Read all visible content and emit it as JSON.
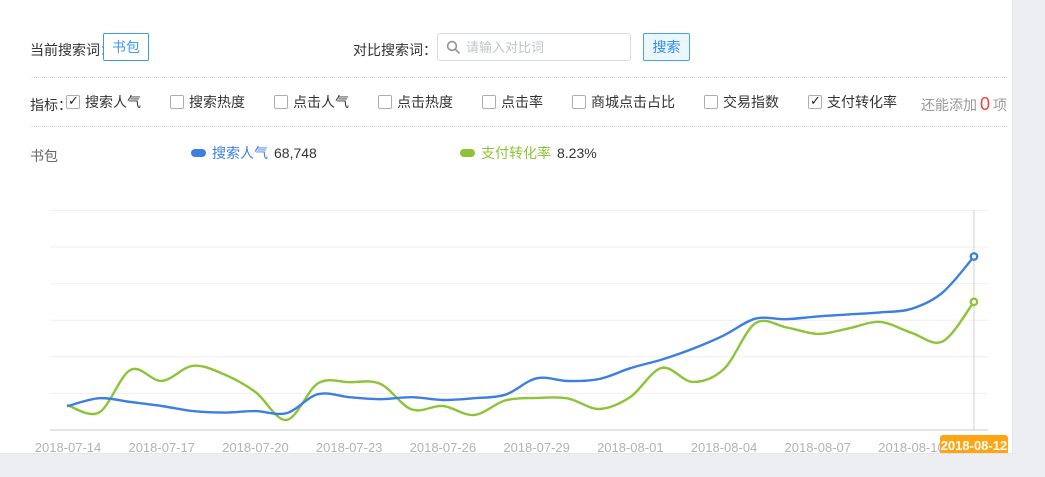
{
  "search_bar": {
    "current_label": "当前搜索词：",
    "current_term": "书包",
    "compare_label": "对比搜索词：",
    "compare_placeholder": "请输入对比词",
    "search_button": "搜索"
  },
  "metrics": {
    "label": "指标：",
    "items": [
      {
        "label": "搜索人气",
        "checked": true
      },
      {
        "label": "搜索热度",
        "checked": false
      },
      {
        "label": "点击人气",
        "checked": false
      },
      {
        "label": "点击热度",
        "checked": false
      },
      {
        "label": "点击率",
        "checked": false
      },
      {
        "label": "商城点击占比",
        "checked": false
      },
      {
        "label": "交易指数",
        "checked": false
      },
      {
        "label": "支付转化率",
        "checked": true
      }
    ],
    "remain_prefix": "还能添加",
    "remain_count": "0",
    "remain_suffix": "项"
  },
  "legend": {
    "term": "书包",
    "items": [
      {
        "label": "搜索人气",
        "value": "68,748",
        "color": "#3c7fe0"
      },
      {
        "label": "支付转化率",
        "value": "8.23%",
        "color": "#8dc437"
      }
    ]
  },
  "colors": {
    "accent_blue": "#3d9ae8",
    "line_blue": "#3c7fe0",
    "line_green": "#8dc437",
    "highlight_orange": "#ffa412",
    "alert_red": "#f2413d",
    "grid": "#efefef",
    "axis": "#c9c9c9",
    "tick_text": "#b0b2b5"
  },
  "chart_data": {
    "type": "line",
    "title": "",
    "grid": true,
    "legend_position": "top",
    "y_axis_labels_visible": false,
    "x_dates": [
      "2018-07-14",
      "2018-07-15",
      "2018-07-16",
      "2018-07-17",
      "2018-07-18",
      "2018-07-19",
      "2018-07-20",
      "2018-07-21",
      "2018-07-22",
      "2018-07-23",
      "2018-07-24",
      "2018-07-25",
      "2018-07-26",
      "2018-07-27",
      "2018-07-28",
      "2018-07-29",
      "2018-07-30",
      "2018-07-31",
      "2018-08-01",
      "2018-08-02",
      "2018-08-03",
      "2018-08-04",
      "2018-08-05",
      "2018-08-06",
      "2018-08-07",
      "2018-08-08",
      "2018-08-09",
      "2018-08-10",
      "2018-08-11",
      "2018-08-12"
    ],
    "x_tick_labels": [
      "2018-07-14",
      "2018-07-17",
      "2018-07-20",
      "2018-07-23",
      "2018-07-26",
      "2018-07-29",
      "2018-08-01",
      "2018-08-04",
      "2018-08-07",
      "2018-08-10"
    ],
    "highlight_label": "2018-08-12",
    "series": [
      {
        "name": "搜索人气",
        "color": "#3c7fe0",
        "current_value": "68,748",
        "ylim": [
          0,
          87000
        ],
        "values": [
          9500,
          12600,
          11100,
          9500,
          7500,
          6900,
          7500,
          6700,
          14200,
          13000,
          12200,
          13000,
          11900,
          12600,
          14000,
          20500,
          19400,
          20200,
          24500,
          27900,
          32200,
          37500,
          44100,
          43900,
          45000,
          45800,
          46600,
          48000,
          54500,
          68748
        ]
      },
      {
        "name": "支付转化率",
        "color": "#8dc437",
        "current_value": "8.23%",
        "ylim": [
          0,
          14.1
        ],
        "values": [
          1.58,
          1.13,
          3.86,
          3.15,
          4.12,
          3.57,
          2.44,
          0.64,
          2.99,
          3.07,
          2.96,
          1.32,
          1.54,
          0.96,
          1.9,
          2.06,
          2.03,
          1.35,
          2.12,
          3.99,
          3.09,
          3.92,
          6.85,
          6.59,
          6.17,
          6.53,
          6.94,
          6.24,
          5.69,
          8.23
        ]
      }
    ]
  }
}
